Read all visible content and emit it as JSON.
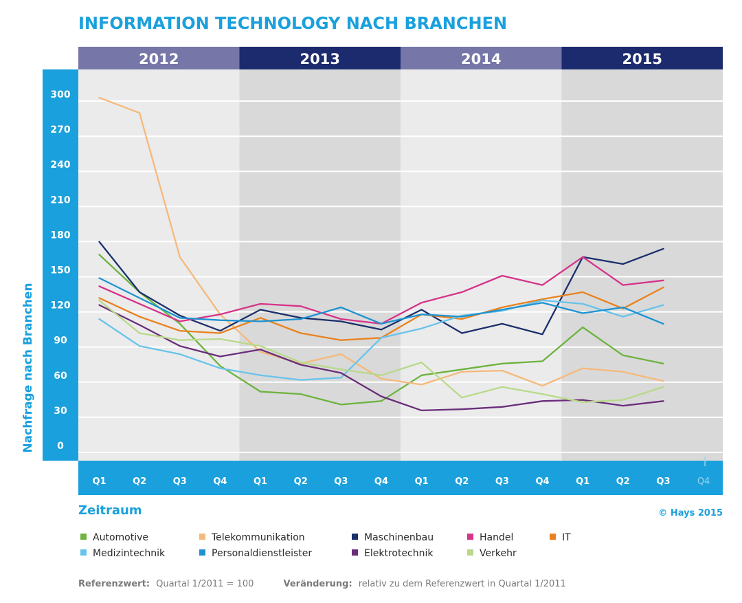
{
  "chart_data": {
    "type": "line",
    "title": "INFORMATION TECHNOLOGY NACH BRANCHEN",
    "ylabel": "Nachfrage nach Branchen",
    "xlabel": "Zeitraum",
    "ylim": [
      0,
      300
    ],
    "yticks": [
      0,
      30,
      60,
      90,
      120,
      150,
      180,
      210,
      240,
      270,
      300
    ],
    "grid": true,
    "legend_position": "bottom",
    "years": [
      {
        "label": "2012",
        "style": "light"
      },
      {
        "label": "2013",
        "style": "dark"
      },
      {
        "label": "2014",
        "style": "light"
      },
      {
        "label": "2015",
        "style": "dark"
      }
    ],
    "categories": [
      "Q1",
      "Q2",
      "Q3",
      "Q4",
      "Q1",
      "Q2",
      "Q3",
      "Q4",
      "Q1",
      "Q2",
      "Q3",
      "Q4",
      "Q1",
      "Q2",
      "Q3",
      "Q4"
    ],
    "series": [
      {
        "name": "Automotive",
        "color": "#6db33f",
        "values": [
          163,
          131,
          104,
          68,
          46,
          44,
          35,
          38,
          60,
          65,
          70,
          72,
          101,
          77,
          70,
          null
        ]
      },
      {
        "name": "Telekommunikation",
        "color": "#f5b97a",
        "values": [
          297,
          284,
          161,
          112,
          80,
          70,
          78,
          57,
          52,
          63,
          64,
          51,
          66,
          63,
          55,
          null
        ]
      },
      {
        "name": "Maschinenbau",
        "color": "#1b2f6b",
        "values": [
          174,
          131,
          111,
          98,
          116,
          109,
          106,
          99,
          116,
          96,
          104,
          95,
          161,
          155,
          168,
          null
        ]
      },
      {
        "name": "Handel",
        "color": "#d6338a",
        "values": [
          136,
          121,
          106,
          112,
          121,
          119,
          108,
          104,
          122,
          131,
          145,
          137,
          161,
          137,
          141,
          null
        ]
      },
      {
        "name": "IT",
        "color": "#e9821e",
        "values": [
          126,
          110,
          98,
          96,
          109,
          96,
          90,
          92,
          112,
          108,
          118,
          125,
          131,
          117,
          135,
          null
        ]
      },
      {
        "name": "Medizintechnik",
        "color": "#68c3ea",
        "values": [
          108,
          85,
          78,
          66,
          60,
          56,
          58,
          92,
          100,
          111,
          115,
          124,
          121,
          110,
          120,
          null
        ]
      },
      {
        "name": "Personaldienstleister",
        "color": "#1d93d2",
        "values": [
          143,
          126,
          109,
          107,
          106,
          108,
          118,
          104,
          112,
          110,
          116,
          122,
          113,
          118,
          104,
          null
        ]
      },
      {
        "name": "Elektrotechnik",
        "color": "#6a2d7a",
        "values": [
          120,
          103,
          85,
          76,
          82,
          69,
          62,
          42,
          30,
          31,
          33,
          38,
          39,
          34,
          38,
          null
        ]
      },
      {
        "name": "Verkehr",
        "color": "#b8d98a",
        "values": [
          124,
          96,
          90,
          91,
          85,
          71,
          65,
          60,
          71,
          41,
          50,
          44,
          37,
          39,
          50,
          null
        ]
      }
    ]
  },
  "legend": {
    "row1": [
      "Automotive",
      "Telekommunikation",
      "Maschinenbau",
      "Handel",
      "IT"
    ],
    "row2": [
      "Medizintechnik",
      "Personaldienstleister",
      "Elektrotechnik",
      "Verkehr"
    ]
  },
  "copyright": "© Hays 2015",
  "footnote": {
    "ref_label": "Referenzwert:",
    "ref_text": "Quartal 1/2011 = 100",
    "change_label": "Veränderung:",
    "change_text": "relativ zu dem Referenzwert in Quartal 1/2011"
  },
  "colors": {
    "accent": "#1aa0dc",
    "year_light": "#7676a8",
    "year_dark": "#1c2a6e",
    "band_light": "#ebebeb",
    "band_dark": "#d9d9d9"
  }
}
